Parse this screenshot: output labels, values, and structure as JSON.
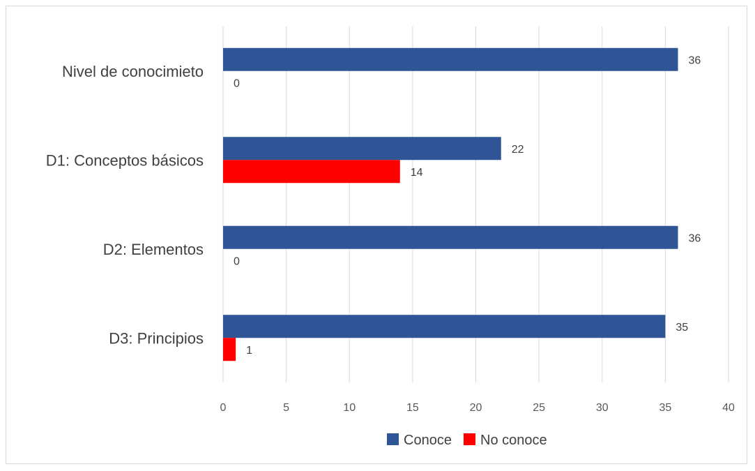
{
  "chart_data": {
    "type": "bar",
    "orientation": "horizontal",
    "categories": [
      "Nivel de conocimieto",
      "D1: Conceptos básicos",
      "D2: Elementos",
      "D3: Principios"
    ],
    "series": [
      {
        "name": "Conoce",
        "color": "#2F5597",
        "values": [
          36,
          22,
          36,
          35
        ]
      },
      {
        "name": "No conoce",
        "color": "#FF0000",
        "values": [
          0,
          14,
          0,
          1
        ]
      }
    ],
    "xlim": [
      0,
      40
    ],
    "xticks": [
      "0",
      "5",
      "10",
      "15",
      "20",
      "25",
      "30",
      "35",
      "40"
    ],
    "grid": true,
    "legend": "bottom",
    "data_labels": true
  }
}
